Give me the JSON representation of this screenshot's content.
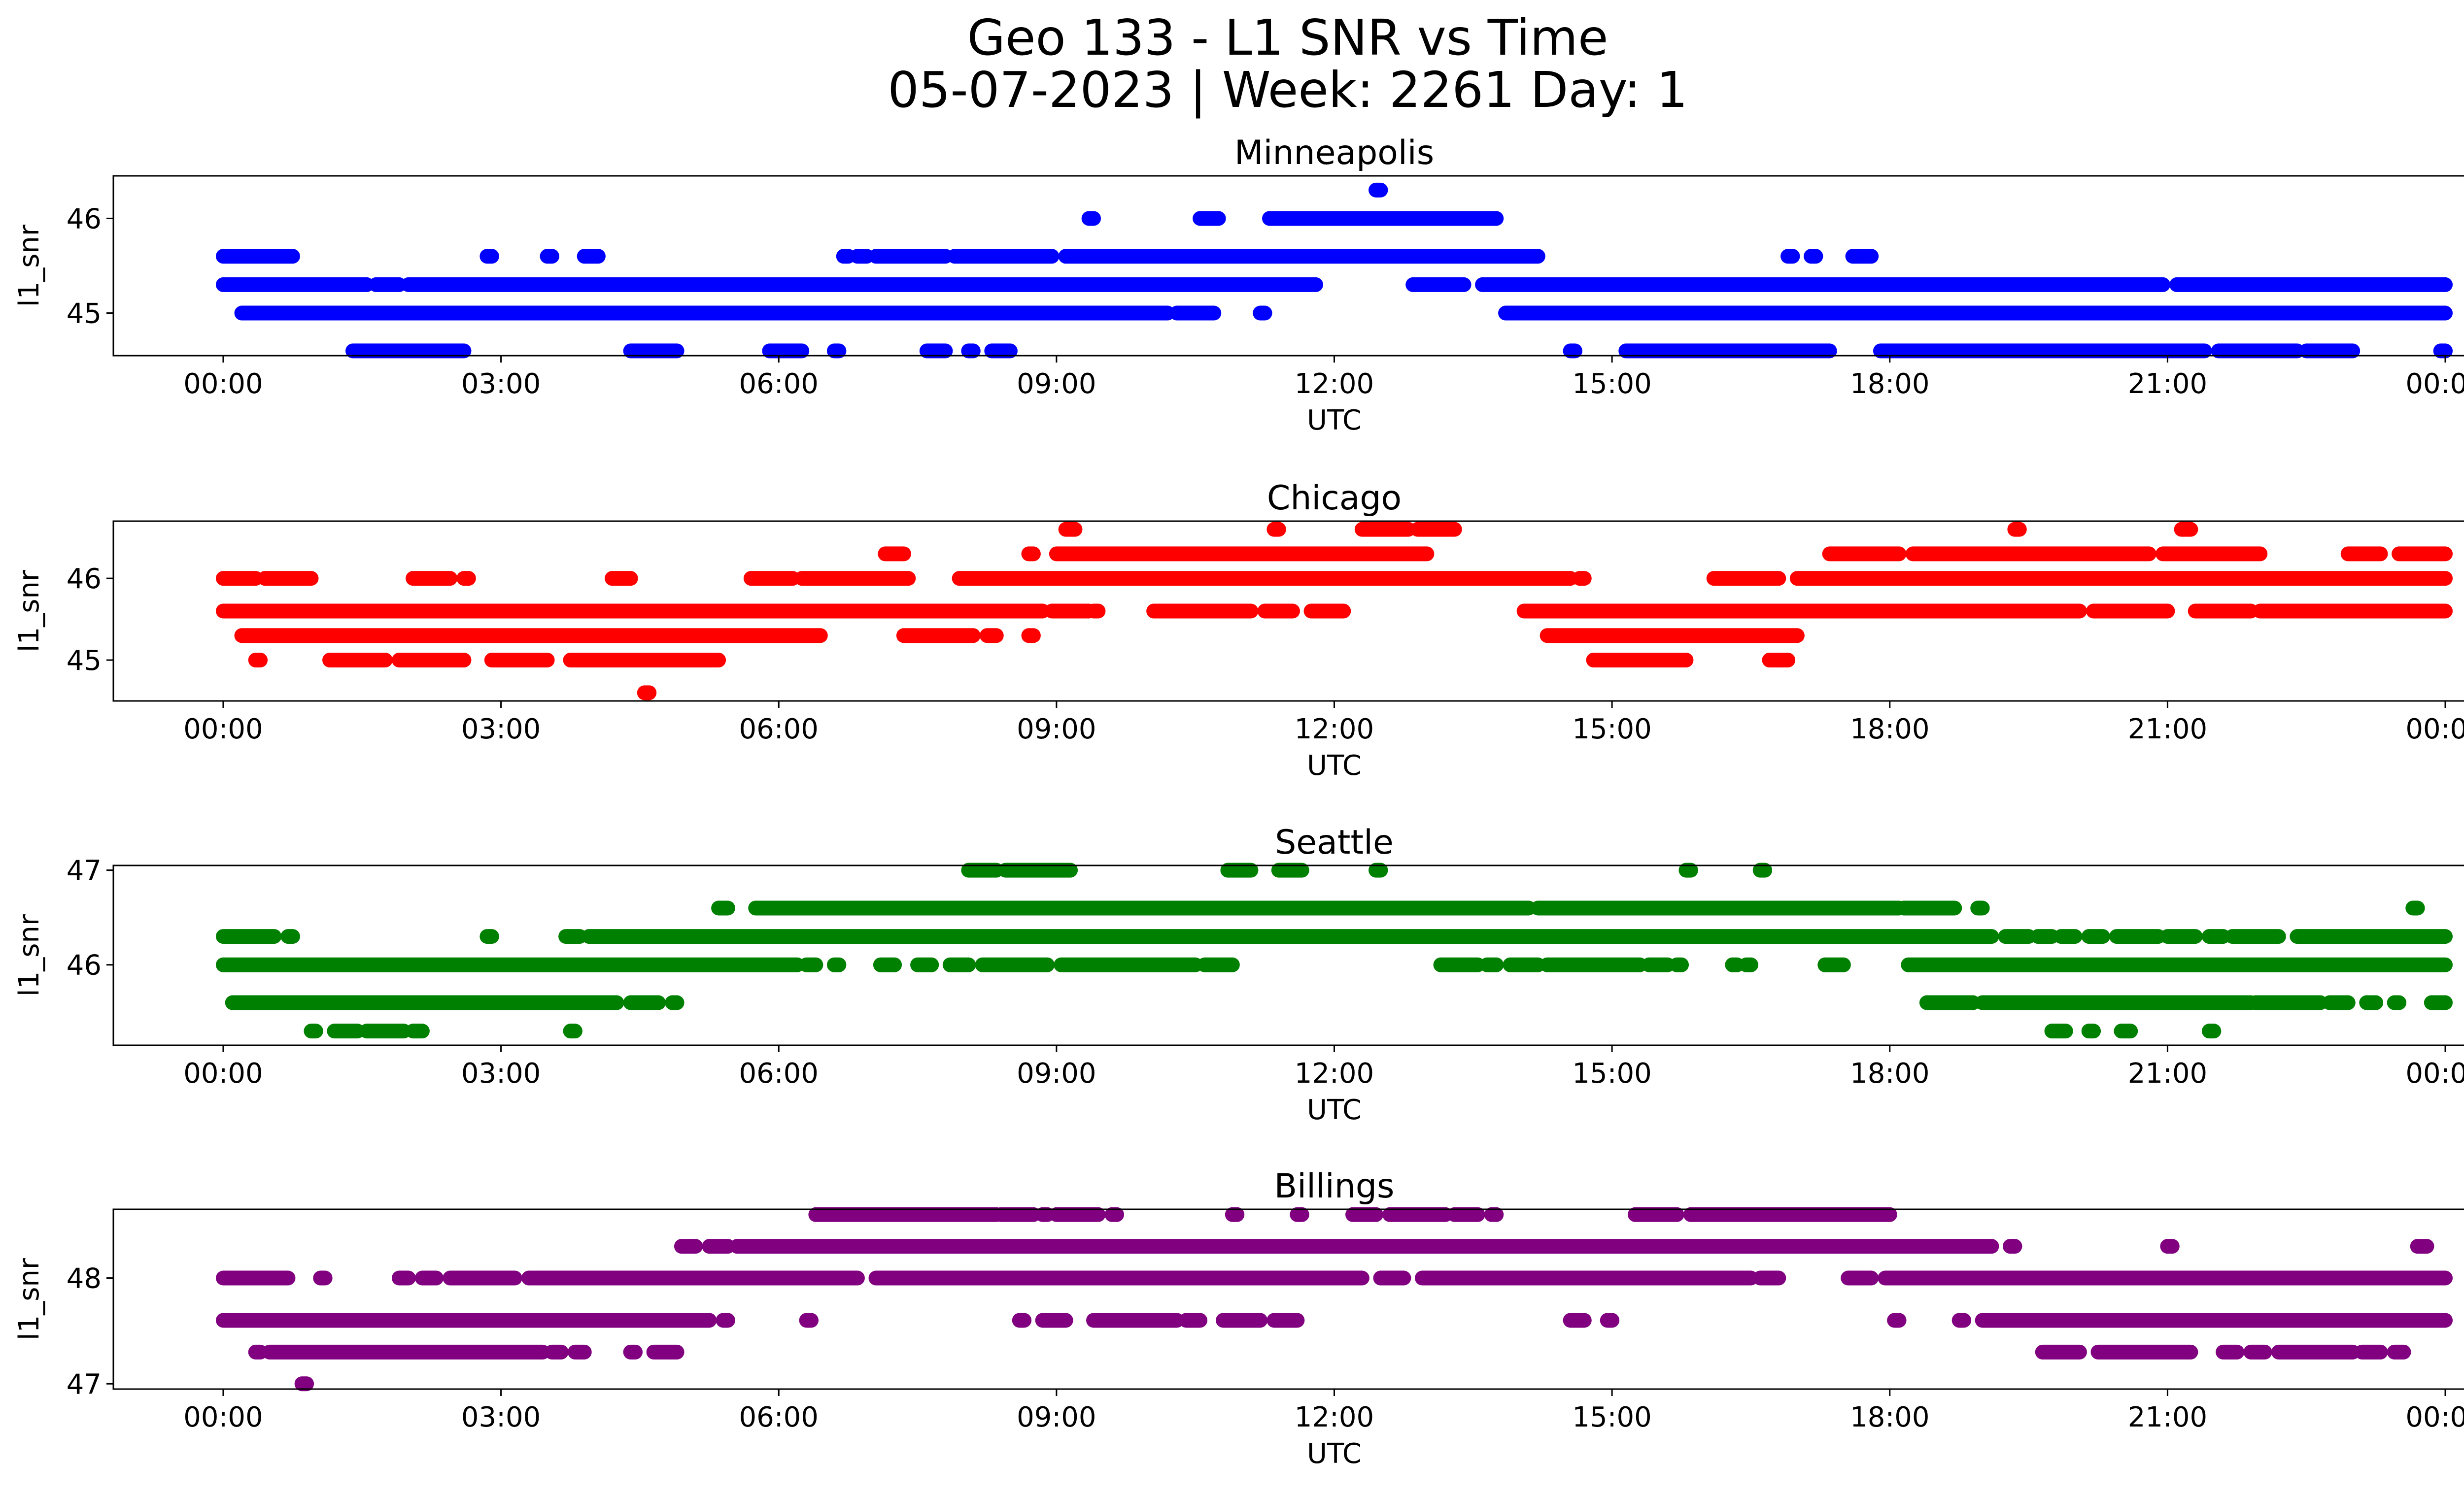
{
  "figure": {
    "title_line1": "Geo 133 - L1 SNR vs Time",
    "title_line2": "05-07-2023 | Week: 2261 Day: 1"
  },
  "chart_data": [
    {
      "type": "scatter",
      "title": "Minneapolis",
      "color": "#0000ff",
      "xlabel": "UTC",
      "ylabel": "l1_snr",
      "xlim": [
        "00:00",
        "24:00"
      ],
      "ylim": [
        44.55,
        46.45
      ],
      "x_ticks": [
        "00:00",
        "03:00",
        "06:00",
        "09:00",
        "12:00",
        "15:00",
        "18:00",
        "21:00",
        "00:00"
      ],
      "y_ticks": [
        "45",
        "46"
      ],
      "levels": [
        {
          "y": 46.3,
          "segments": [
            [
              12.45,
              12.5
            ]
          ]
        },
        {
          "y": 46.0,
          "segments": [
            [
              9.35,
              9.4
            ],
            [
              10.55,
              10.75
            ],
            [
              11.3,
              13.75
            ]
          ]
        },
        {
          "y": 45.6,
          "segments": [
            [
              0.0,
              0.75
            ],
            [
              2.85,
              2.9
            ],
            [
              3.5,
              3.55
            ],
            [
              3.9,
              4.05
            ],
            [
              6.7,
              6.75
            ],
            [
              6.85,
              6.95
            ],
            [
              7.05,
              7.8
            ],
            [
              7.9,
              8.95
            ],
            [
              9.1,
              14.2
            ],
            [
              16.9,
              16.95
            ],
            [
              17.15,
              17.2
            ],
            [
              17.6,
              17.8
            ]
          ]
        },
        {
          "y": 45.3,
          "segments": [
            [
              0.0,
              1.55
            ],
            [
              1.65,
              1.9
            ],
            [
              2.0,
              11.8
            ],
            [
              12.85,
              13.4
            ],
            [
              13.6,
              20.95
            ],
            [
              21.1,
              24.0
            ]
          ]
        },
        {
          "y": 45.0,
          "segments": [
            [
              0.2,
              10.2
            ],
            [
              10.3,
              10.7
            ],
            [
              11.2,
              11.25
            ],
            [
              13.85,
              24.0
            ]
          ]
        },
        {
          "y": 44.6,
          "segments": [
            [
              1.4,
              2.6
            ],
            [
              4.4,
              4.9
            ],
            [
              5.9,
              6.25
            ],
            [
              6.6,
              6.65
            ],
            [
              7.6,
              7.8
            ],
            [
              8.05,
              8.1
            ],
            [
              8.3,
              8.5
            ],
            [
              14.55,
              14.6
            ],
            [
              15.15,
              17.35
            ],
            [
              17.9,
              21.4
            ],
            [
              21.55,
              22.4
            ],
            [
              22.5,
              23.0
            ],
            [
              23.95,
              24.0
            ]
          ]
        }
      ]
    },
    {
      "type": "scatter",
      "title": "Chicago",
      "color": "#ff0000",
      "xlabel": "UTC",
      "ylabel": "l1_snr",
      "xlim": [
        "00:00",
        "24:00"
      ],
      "ylim": [
        44.5,
        46.7
      ],
      "x_ticks": [
        "00:00",
        "03:00",
        "06:00",
        "09:00",
        "12:00",
        "15:00",
        "18:00",
        "21:00",
        "00:00"
      ],
      "y_ticks": [
        "45",
        "46"
      ],
      "levels": [
        {
          "y": 46.6,
          "segments": [
            [
              9.1,
              9.2
            ],
            [
              11.35,
              11.4
            ],
            [
              12.3,
              12.8
            ],
            [
              12.9,
              13.3
            ],
            [
              19.35,
              19.4
            ],
            [
              21.15,
              21.25
            ]
          ]
        },
        {
          "y": 46.3,
          "segments": [
            [
              7.15,
              7.35
            ],
            [
              8.7,
              8.75
            ],
            [
              9.0,
              13.0
            ],
            [
              17.35,
              18.1
            ],
            [
              18.25,
              20.8
            ],
            [
              20.95,
              22.0
            ],
            [
              22.95,
              23.3
            ],
            [
              23.5,
              24.0
            ]
          ]
        },
        {
          "y": 46.0,
          "segments": [
            [
              0.0,
              0.35
            ],
            [
              0.45,
              0.95
            ],
            [
              2.05,
              2.45
            ],
            [
              2.6,
              2.65
            ],
            [
              4.2,
              4.4
            ],
            [
              5.7,
              6.15
            ],
            [
              6.25,
              7.4
            ],
            [
              7.95,
              14.55
            ],
            [
              14.65,
              14.7
            ],
            [
              16.1,
              16.8
            ],
            [
              17.0,
              24.0
            ]
          ]
        },
        {
          "y": 45.6,
          "segments": [
            [
              0.0,
              8.85
            ],
            [
              8.95,
              9.35
            ],
            [
              9.4,
              9.45
            ],
            [
              10.05,
              11.1
            ],
            [
              11.25,
              11.55
            ],
            [
              11.75,
              12.1
            ],
            [
              14.05,
              20.05
            ],
            [
              20.2,
              21.0
            ],
            [
              21.3,
              21.9
            ],
            [
              22.0,
              24.0
            ]
          ]
        },
        {
          "y": 45.3,
          "segments": [
            [
              0.2,
              6.45
            ],
            [
              7.35,
              8.1
            ],
            [
              8.25,
              8.35
            ],
            [
              8.7,
              8.75
            ],
            [
              14.3,
              17.0
            ]
          ]
        },
        {
          "y": 45.0,
          "segments": [
            [
              0.35,
              0.4
            ],
            [
              1.15,
              1.75
            ],
            [
              1.9,
              2.5
            ],
            [
              2.4,
              2.6
            ],
            [
              2.9,
              3.5
            ],
            [
              3.75,
              5.35
            ],
            [
              14.8,
              15.8
            ],
            [
              16.7,
              16.9
            ]
          ]
        },
        {
          "y": 44.6,
          "segments": [
            [
              4.55,
              4.6
            ]
          ]
        }
      ]
    },
    {
      "type": "scatter",
      "title": "Seattle",
      "color": "#008000",
      "xlabel": "UTC",
      "ylabel": "l1_snr",
      "xlim": [
        "00:00",
        "24:00"
      ],
      "ylim": [
        45.15,
        47.05
      ],
      "x_ticks": [
        "00:00",
        "03:00",
        "06:00",
        "09:00",
        "12:00",
        "15:00",
        "18:00",
        "21:00",
        "00:00"
      ],
      "y_ticks": [
        "46",
        "47"
      ],
      "levels": [
        {
          "y": 47.0,
          "segments": [
            [
              8.05,
              8.35
            ],
            [
              8.45,
              9.15
            ],
            [
              10.85,
              11.1
            ],
            [
              11.4,
              11.65
            ],
            [
              12.45,
              12.5
            ],
            [
              15.8,
              15.85
            ],
            [
              16.6,
              16.65
            ]
          ]
        },
        {
          "y": 46.6,
          "segments": [
            [
              5.35,
              5.45
            ],
            [
              5.75,
              14.1
            ],
            [
              14.2,
              18.1
            ],
            [
              18.15,
              18.7
            ],
            [
              18.95,
              19.0
            ],
            [
              23.65,
              23.7
            ]
          ]
        },
        {
          "y": 46.3,
          "segments": [
            [
              0.0,
              0.55
            ],
            [
              0.7,
              0.75
            ],
            [
              2.85,
              2.9
            ],
            [
              3.7,
              3.85
            ],
            [
              3.95,
              19.1
            ],
            [
              19.25,
              19.5
            ],
            [
              19.6,
              19.75
            ],
            [
              19.85,
              20.0
            ],
            [
              20.15,
              20.3
            ],
            [
              20.45,
              20.9
            ],
            [
              21.0,
              21.3
            ],
            [
              21.45,
              21.6
            ],
            [
              21.7,
              22.2
            ],
            [
              22.4,
              24.0
            ]
          ]
        },
        {
          "y": 46.0,
          "segments": [
            [
              0.0,
              6.2
            ],
            [
              6.3,
              6.4
            ],
            [
              6.6,
              6.65
            ],
            [
              7.1,
              7.25
            ],
            [
              7.5,
              7.65
            ],
            [
              7.85,
              8.05
            ],
            [
              8.2,
              8.9
            ],
            [
              9.05,
              10.5
            ],
            [
              10.6,
              10.9
            ],
            [
              13.15,
              13.55
            ],
            [
              13.65,
              13.75
            ],
            [
              13.9,
              14.2
            ],
            [
              14.3,
              15.3
            ],
            [
              15.4,
              15.6
            ],
            [
              15.7,
              15.75
            ],
            [
              16.3,
              16.35
            ],
            [
              16.45,
              16.5
            ],
            [
              17.3,
              17.5
            ],
            [
              18.2,
              24.0
            ]
          ]
        },
        {
          "y": 45.6,
          "segments": [
            [
              0.1,
              4.25
            ],
            [
              4.4,
              4.7
            ],
            [
              4.85,
              4.9
            ],
            [
              18.4,
              18.9
            ],
            [
              19.0,
              21.9
            ],
            [
              21.95,
              22.65
            ],
            [
              22.75,
              22.95
            ],
            [
              23.15,
              23.25
            ],
            [
              23.45,
              23.5
            ],
            [
              23.85,
              24.0
            ]
          ]
        },
        {
          "y": 45.3,
          "segments": [
            [
              0.95,
              1.0
            ],
            [
              1.2,
              1.45
            ],
            [
              1.55,
              1.95
            ],
            [
              2.05,
              2.15
            ],
            [
              3.75,
              3.8
            ],
            [
              19.75,
              19.9
            ],
            [
              20.15,
              20.2
            ],
            [
              20.5,
              20.6
            ],
            [
              21.45,
              21.5
            ]
          ]
        }
      ]
    },
    {
      "type": "scatter",
      "title": "Billings",
      "color": "#800080",
      "xlabel": "UTC",
      "ylabel": "l1_snr",
      "xlim": [
        "00:00",
        "24:00"
      ],
      "ylim": [
        46.95,
        48.65
      ],
      "x_ticks": [
        "00:00",
        "03:00",
        "06:00",
        "09:00",
        "12:00",
        "15:00",
        "18:00",
        "21:00",
        "00:00"
      ],
      "y_ticks": [
        "47",
        "48"
      ],
      "levels": [
        {
          "y": 48.6,
          "segments": [
            [
              6.4,
              8.35
            ],
            [
              8.4,
              8.75
            ],
            [
              8.85,
              8.9
            ],
            [
              9.0,
              9.45
            ],
            [
              9.6,
              9.65
            ],
            [
              10.9,
              10.95
            ],
            [
              11.6,
              11.65
            ],
            [
              12.2,
              12.45
            ],
            [
              12.6,
              13.2
            ],
            [
              13.3,
              13.55
            ],
            [
              13.7,
              13.75
            ],
            [
              15.25,
              15.7
            ],
            [
              15.85,
              18.0
            ]
          ]
        },
        {
          "y": 48.3,
          "segments": [
            [
              4.95,
              5.1
            ],
            [
              5.25,
              5.45
            ],
            [
              5.55,
              19.1
            ],
            [
              19.3,
              19.35
            ],
            [
              21.0,
              21.05
            ],
            [
              23.7,
              23.8
            ]
          ]
        },
        {
          "y": 48.0,
          "segments": [
            [
              0.0,
              0.7
            ],
            [
              1.05,
              1.1
            ],
            [
              1.9,
              2.0
            ],
            [
              2.15,
              2.3
            ],
            [
              2.45,
              3.15
            ],
            [
              3.3,
              6.85
            ],
            [
              7.05,
              12.3
            ],
            [
              12.5,
              12.75
            ],
            [
              12.95,
              16.5
            ],
            [
              16.6,
              16.8
            ],
            [
              17.55,
              17.8
            ],
            [
              17.95,
              24.0
            ]
          ]
        },
        {
          "y": 47.6,
          "segments": [
            [
              0.0,
              5.25
            ],
            [
              5.4,
              5.45
            ],
            [
              6.3,
              6.35
            ],
            [
              8.6,
              8.65
            ],
            [
              8.85,
              9.1
            ],
            [
              9.4,
              10.3
            ],
            [
              10.4,
              10.55
            ],
            [
              10.8,
              11.2
            ],
            [
              11.35,
              11.6
            ],
            [
              14.55,
              14.7
            ],
            [
              14.95,
              15.0
            ],
            [
              18.05,
              18.1
            ],
            [
              18.75,
              18.8
            ],
            [
              19.0,
              24.0
            ]
          ]
        },
        {
          "y": 47.3,
          "segments": [
            [
              0.35,
              0.4
            ],
            [
              0.5,
              3.45
            ],
            [
              3.55,
              3.65
            ],
            [
              3.8,
              3.9
            ],
            [
              4.4,
              4.45
            ],
            [
              4.65,
              4.9
            ],
            [
              19.65,
              20.05
            ],
            [
              20.25,
              21.25
            ],
            [
              21.6,
              21.75
            ],
            [
              21.9,
              22.05
            ],
            [
              22.2,
              23.0
            ],
            [
              23.1,
              23.3
            ],
            [
              23.45,
              23.55
            ]
          ]
        },
        {
          "y": 47.0,
          "segments": [
            [
              0.85,
              0.9
            ]
          ]
        }
      ]
    }
  ]
}
